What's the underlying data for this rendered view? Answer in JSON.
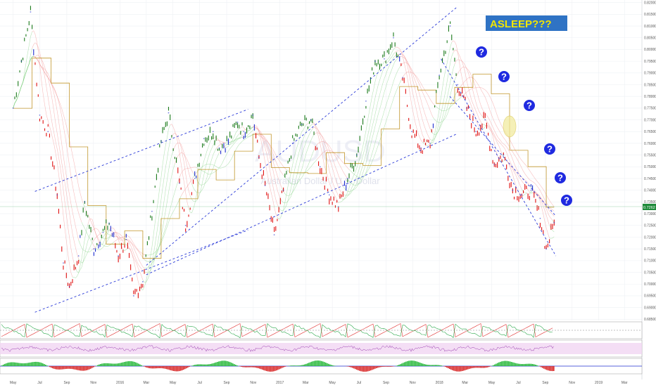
{
  "colors": {
    "bull": "#1a7a1a",
    "bear": "#e01010",
    "neutral": "#1f2fd0",
    "kijun": "#b8860b",
    "channel": "#2a3ad8",
    "annotation_box": "#2f73c4",
    "annotation_text": "#f2e600",
    "question_fill": "#1f2ae0",
    "last_price_badge": "#1f8a3a",
    "rsi_band": "#f1d6f2"
  },
  "icons": [
    "question-mark-circle-icon"
  ],
  "chart_data": {
    "type": "line",
    "symbol_watermark": "AUDUSD",
    "symbol_description": "Australian Dollar / U.S. Dollar",
    "annotation_text": "ASLEEP???",
    "question_marks": [
      "?",
      "?",
      "?",
      "?",
      "?",
      "?"
    ],
    "last_price": "0.7262",
    "x_tick_labels": [
      "May",
      "Jul",
      "Sep",
      "Nov",
      "2016",
      "Mar",
      "May",
      "Jul",
      "Sep",
      "Nov",
      "2017",
      "Mar",
      "May",
      "Jul",
      "Sep",
      "Nov",
      "2018",
      "Mar",
      "May",
      "Jul",
      "Sep",
      "Nov",
      "2019",
      "Mar"
    ],
    "y_tick_labels": [
      "0.82000",
      "0.81500",
      "0.81000",
      "0.80500",
      "0.80000",
      "0.79500",
      "0.79000",
      "0.78500",
      "0.78000",
      "0.77500",
      "0.77000",
      "0.76500",
      "0.76000",
      "0.75500",
      "0.75000",
      "0.74500",
      "0.74000",
      "0.73500",
      "0.73000",
      "0.72500",
      "0.72000",
      "0.71500",
      "0.71000",
      "0.70500",
      "0.70000",
      "0.69500",
      "0.69000",
      "0.68500"
    ],
    "ylim": [
      0.6845,
      0.8205
    ],
    "series": [
      {
        "name": "",
        "x": [
          "2015-05-01",
          "2015-05-20",
          "2015-06-10",
          "2015-07-01",
          "2015-07-20",
          "2015-08-10",
          "2015-08-24",
          "2015-09-07",
          "2015-09-28",
          "2015-10-12",
          "2015-11-02",
          "2015-11-23",
          "2015-12-07",
          "2015-12-28",
          "2016-01-15",
          "2016-02-01",
          "2016-02-22",
          "2016-03-14",
          "2016-04-04",
          "2016-04-21",
          "2016-05-16",
          "2016-05-30",
          "2016-06-20",
          "2016-07-11",
          "2016-08-01",
          "2016-08-15",
          "2016-09-05",
          "2016-09-26",
          "2016-10-10",
          "2016-10-31",
          "2016-11-14",
          "2016-11-28",
          "2016-12-19",
          "2017-01-09",
          "2017-01-30",
          "2017-02-20",
          "2017-03-13",
          "2017-04-03",
          "2017-04-24",
          "2017-05-15",
          "2017-06-05",
          "2017-06-26",
          "2017-07-17",
          "2017-08-07",
          "2017-08-28",
          "2017-09-18",
          "2017-10-09",
          "2017-10-30",
          "2017-11-20",
          "2017-12-11",
          "2018-01-01",
          "2018-01-26",
          "2018-02-12",
          "2018-03-05",
          "2018-03-26",
          "2018-04-16",
          "2018-05-07",
          "2018-05-28",
          "2018-06-18",
          "2018-07-09",
          "2018-07-30",
          "2018-08-20",
          "2018-09-03",
          "2018-09-21"
        ],
        "y": [
          0.775,
          0.795,
          0.816,
          0.772,
          0.765,
          0.738,
          0.709,
          0.699,
          0.712,
          0.735,
          0.715,
          0.722,
          0.726,
          0.712,
          0.719,
          0.695,
          0.701,
          0.731,
          0.761,
          0.773,
          0.743,
          0.725,
          0.745,
          0.762,
          0.765,
          0.758,
          0.761,
          0.769,
          0.765,
          0.772,
          0.754,
          0.742,
          0.721,
          0.74,
          0.76,
          0.768,
          0.77,
          0.75,
          0.738,
          0.733,
          0.745,
          0.755,
          0.778,
          0.795,
          0.796,
          0.805,
          0.788,
          0.765,
          0.758,
          0.76,
          0.789,
          0.81,
          0.785,
          0.775,
          0.765,
          0.77,
          0.751,
          0.755,
          0.74,
          0.738,
          0.74,
          0.728,
          0.715,
          0.7262
        ]
      }
    ],
    "channels": [
      {
        "name": "",
        "x": [
          "2015-06-20",
          "2016-10-20"
        ],
        "y": [
          0.7395,
          0.7745
        ]
      },
      {
        "name": "",
        "x": [
          "2015-06-20",
          "2016-10-20"
        ],
        "y": [
          0.688,
          0.723
        ]
      },
      {
        "name": "",
        "x": [
          "2016-03-01",
          "2018-02-10"
        ],
        "y": [
          0.704,
          0.764
        ]
      },
      {
        "name": "",
        "x": [
          "2016-03-01",
          "2018-02-10"
        ],
        "y": [
          0.708,
          0.818
        ]
      },
      {
        "name": "",
        "x": [
          "2018-01-05",
          "2018-09-25"
        ],
        "y": [
          0.796,
          0.712
        ]
      },
      {
        "name": "",
        "x": [
          "2018-01-25",
          "2018-09-25"
        ],
        "y": [
          0.78,
          0.729
        ]
      }
    ],
    "grid": true,
    "legend": "none",
    "subpanels": [
      "stochastic",
      "rsi",
      "histogram"
    ]
  }
}
